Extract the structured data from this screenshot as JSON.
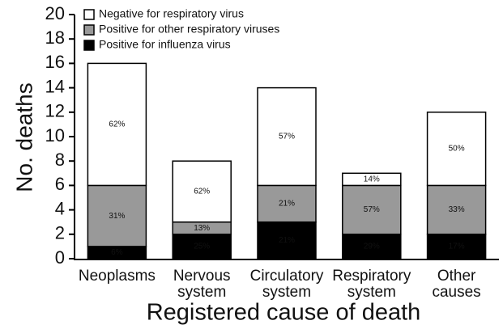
{
  "chart_data": {
    "type": "stacked_bar",
    "x_label": "Registered cause of death",
    "y_label": "No. deaths",
    "categories": [
      "Neoplasms",
      "Nervous system",
      "Circulatory system",
      "Respiratory system",
      "Other causes"
    ],
    "series": [
      {
        "name": "Positive for influenza virus",
        "color": "#000000",
        "values": [
          1,
          2,
          3,
          2,
          2
        ],
        "segment_labels": [
          "6%",
          "25%",
          "21%",
          "29%",
          "17%"
        ]
      },
      {
        "name": "Positive for other respiratory viruses",
        "color": "#999999",
        "values": [
          5,
          1,
          3,
          4,
          4
        ],
        "segment_labels": [
          "31%",
          "13%",
          "21%",
          "57%",
          "33%"
        ]
      },
      {
        "name": "Negative for respiratory virus",
        "color": "#ffffff",
        "values": [
          10,
          5,
          8,
          1,
          6
        ],
        "segment_labels": [
          "62%",
          "62%",
          "57%",
          "14%",
          "50%"
        ]
      }
    ],
    "ylim": [
      0,
      20
    ],
    "yticks": [
      0,
      2,
      4,
      6,
      8,
      10,
      12,
      14,
      16,
      18,
      20
    ],
    "legend": "top-left"
  }
}
